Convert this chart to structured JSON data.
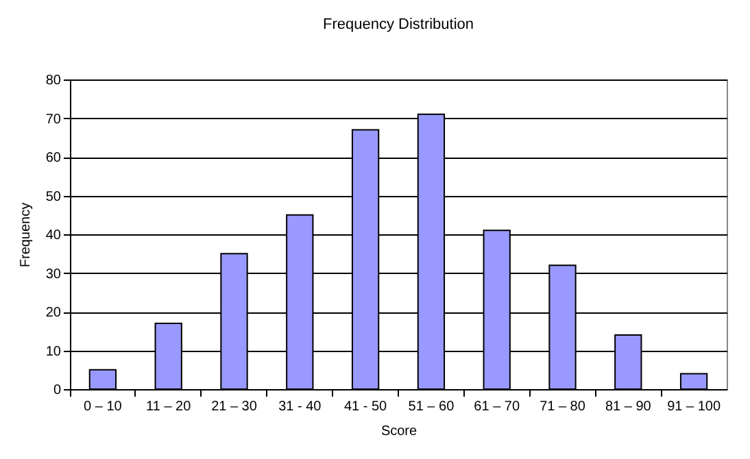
{
  "chart_data": {
    "type": "bar",
    "title": "Frequency Distribution",
    "xlabel": "Score",
    "ylabel": "Frequency",
    "categories": [
      "0 – 10",
      "11 – 20",
      "21 – 30",
      "31 - 40",
      "41 - 50",
      "51 – 60",
      "61 – 70",
      "71 – 80",
      "81 – 90",
      "91 – 100"
    ],
    "series": [
      {
        "color": "#9999ff",
        "values": [
          5,
          17,
          35,
          45,
          67,
          71,
          41,
          32,
          14,
          4
        ]
      }
    ],
    "ylim": [
      0,
      80
    ],
    "yticks": [
      0,
      10,
      20,
      30,
      40,
      50,
      60,
      70,
      80
    ],
    "grid": "y"
  }
}
